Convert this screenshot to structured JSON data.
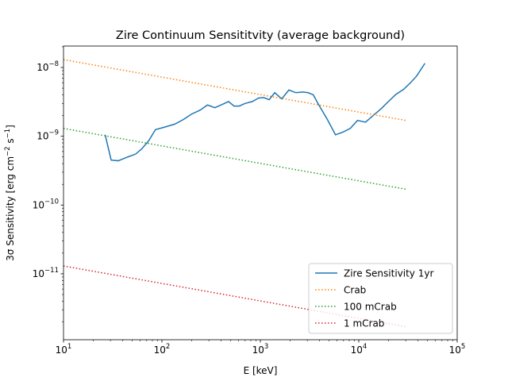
{
  "chart_data": {
    "type": "line",
    "title": "Zire Continuum Sensititvity (average background)",
    "xlabel": "E [keV]",
    "ylabel_prefix": "3σ Sensitivity [erg cm",
    "ylabel_exp1": "−2",
    "ylabel_mid": " s",
    "ylabel_exp2": "−1",
    "ylabel_suffix": "]",
    "xscale": "log",
    "yscale": "log",
    "xlim": [
      10,
      100000
    ],
    "ylim": [
      1.1e-12,
      2.05e-08
    ],
    "grid": false,
    "legend_position": "lower right",
    "x_ticks": [
      {
        "value": 10,
        "base": "10",
        "exp": "1"
      },
      {
        "value": 100,
        "base": "10",
        "exp": "2"
      },
      {
        "value": 1000,
        "base": "10",
        "exp": "3"
      },
      {
        "value": 10000,
        "base": "10",
        "exp": "4"
      },
      {
        "value": 100000,
        "base": "10",
        "exp": "5"
      }
    ],
    "y_ticks": [
      {
        "value": 1e-11,
        "base": "10",
        "exp": "−11"
      },
      {
        "value": 1e-10,
        "base": "10",
        "exp": "−10"
      },
      {
        "value": 1e-09,
        "base": "10",
        "exp": "−9"
      },
      {
        "value": 1e-08,
        "base": "10",
        "exp": "−8"
      }
    ],
    "series": [
      {
        "name": "Zire Sensitivity 1yr",
        "color": "#1f77b4",
        "style": "solid",
        "x": [
          26.5,
          30.5,
          36,
          45,
          54,
          62,
          73,
          86,
          105,
          135,
          165,
          200,
          245,
          290,
          345,
          410,
          475,
          540,
          610,
          700,
          830,
          960,
          1080,
          1230,
          1400,
          1650,
          1950,
          2300,
          2700,
          3050,
          3450,
          3850,
          4800,
          5800,
          6900,
          8200,
          9700,
          11700,
          14000,
          16800,
          20000,
          24000,
          28500,
          33500,
          38700,
          47000
        ],
        "y": [
          1.05e-09,
          4.5e-10,
          4.4e-10,
          5e-10,
          5.5e-10,
          6.5e-10,
          8.5e-10,
          1.25e-09,
          1.35e-09,
          1.5e-09,
          1.75e-09,
          2.1e-09,
          2.4e-09,
          2.85e-09,
          2.6e-09,
          2.9e-09,
          3.2e-09,
          2.75e-09,
          2.75e-09,
          3e-09,
          3.2e-09,
          3.6e-09,
          3.65e-09,
          3.4e-09,
          4.3e-09,
          3.5e-09,
          4.7e-09,
          4.3e-09,
          4.4e-09,
          4.3e-09,
          4e-09,
          3e-09,
          1.75e-09,
          1.05e-09,
          1.15e-09,
          1.3e-09,
          1.7e-09,
          1.6e-09,
          2e-09,
          2.5e-09,
          3.2e-09,
          4.1e-09,
          4.8e-09,
          6e-09,
          7.5e-09,
          1.15e-08
        ]
      },
      {
        "name": "Crab",
        "color": "#ff7f0e",
        "style": "dotted",
        "x": [
          10,
          30000
        ],
        "y": [
          1.3e-08,
          1.7e-09
        ]
      },
      {
        "name": "100 mCrab",
        "color": "#2ca02c",
        "style": "dotted",
        "x": [
          10,
          30000
        ],
        "y": [
          1.3e-09,
          1.7e-10
        ]
      },
      {
        "name": "1 mCrab",
        "color": "#d62728",
        "style": "dotted",
        "x": [
          10,
          30000
        ],
        "y": [
          1.3e-11,
          1.7e-12
        ]
      }
    ]
  }
}
